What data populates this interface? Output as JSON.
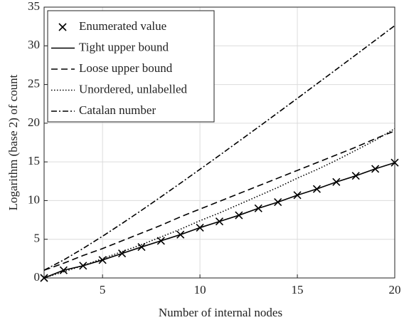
{
  "chart_data": {
    "type": "line",
    "xlabel": "Number of internal nodes",
    "ylabel": "Logarithm (base 2) of count",
    "x": [
      2,
      3,
      4,
      5,
      6,
      7,
      8,
      9,
      10,
      11,
      12,
      13,
      14,
      15,
      16,
      17,
      18,
      19,
      20
    ],
    "series": [
      {
        "name": "Enumerated value",
        "color": "#000000",
        "line_style": "none",
        "marker": "x",
        "values": [
          0,
          1,
          1.58,
          2.32,
          3.17,
          4,
          4.8,
          5.6,
          6.5,
          7.3,
          8.1,
          9,
          9.8,
          10.7,
          11.5,
          12.4,
          13.2,
          14.1,
          14.9
        ]
      },
      {
        "name": "Tight upper bound",
        "color": "#000000",
        "line_style": "solid",
        "values": [
          0,
          1,
          1.58,
          2.32,
          3.17,
          4,
          4.8,
          5.6,
          6.5,
          7.3,
          8.1,
          9,
          9.8,
          10.7,
          11.5,
          12.4,
          13.2,
          14.1,
          14.9
        ]
      },
      {
        "name": "Loose upper bound",
        "color": "#000000",
        "line_style": "dashed",
        "values": [
          1,
          1.9,
          2.9,
          3.8,
          4.8,
          5.8,
          6.8,
          7.9,
          8.9,
          9.9,
          10.9,
          11.9,
          12.9,
          13.9,
          14.9,
          15.9,
          16.9,
          18,
          19
        ]
      },
      {
        "name": "Unordered, unlabelled",
        "color": "#000000",
        "line_style": "dotted",
        "values": [
          0,
          0.8,
          1.6,
          2.5,
          3.4,
          4.3,
          5.3,
          6.3,
          7.4,
          8.4,
          9.5,
          10.6,
          11.7,
          12.9,
          14,
          15.2,
          16.5,
          17.8,
          19.3
        ]
      },
      {
        "name": "Catalan number",
        "color": "#000000",
        "line_style": "dashdot",
        "values": [
          1,
          2.32,
          3.81,
          5.39,
          7.04,
          8.74,
          10.48,
          12.25,
          14.04,
          15.84,
          17.67,
          19.5,
          21.35,
          23.21,
          25.08,
          26.95,
          28.83,
          30.72,
          32.61
        ]
      }
    ],
    "xlim": [
      2,
      20
    ],
    "xticks": [
      5,
      10,
      15,
      20
    ],
    "ylim": [
      0,
      35
    ],
    "yticks": [
      0,
      5,
      10,
      15,
      20,
      25,
      30,
      35
    ],
    "grid": true,
    "legend": "upper-left"
  }
}
